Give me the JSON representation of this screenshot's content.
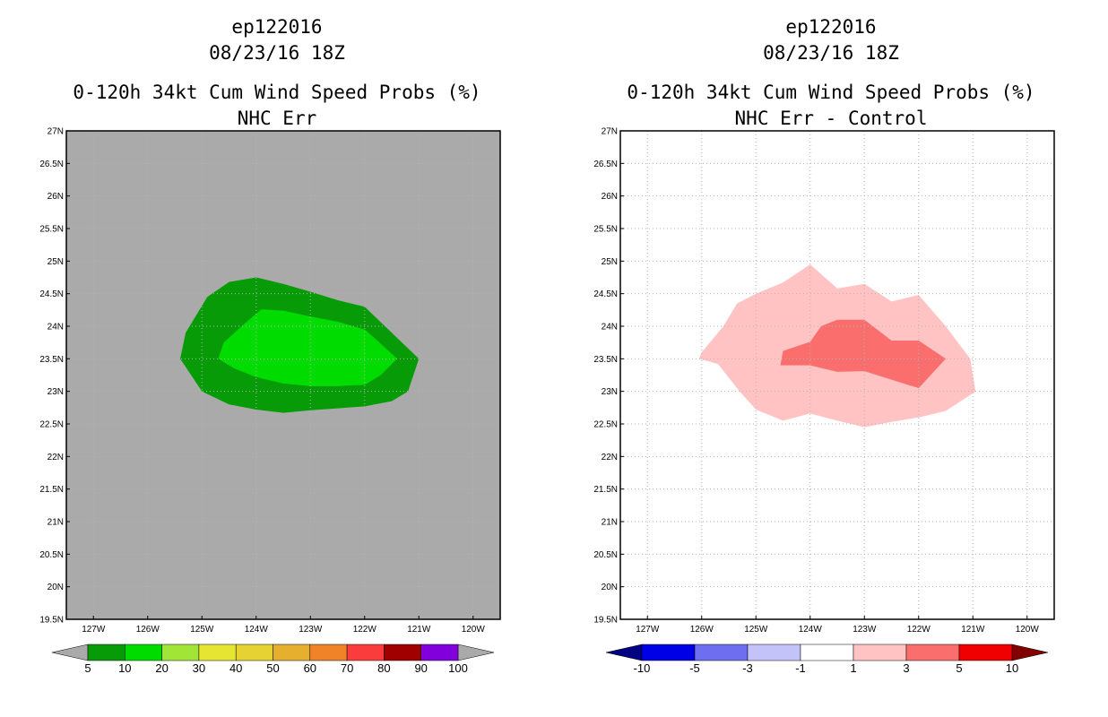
{
  "chart_data": [
    {
      "type": "heatmap",
      "storm_id": "ep122016",
      "date": "08/23/16 18Z",
      "title": "0-120h 34kt Cum Wind Speed Probs (%)",
      "subtitle": "NHC Err",
      "xlim": [
        -127.5,
        -119.5
      ],
      "ylim": [
        19.5,
        27
      ],
      "x_ticks": [
        "127W",
        "126W",
        "125W",
        "124W",
        "123W",
        "122W",
        "121W",
        "120W"
      ],
      "y_ticks": [
        "19.5N",
        "20N",
        "20.5N",
        "21N",
        "21.5N",
        "22N",
        "22.5N",
        "23N",
        "23.5N",
        "24N",
        "24.5N",
        "25N",
        "25.5N",
        "26N",
        "26.5N",
        "27N"
      ],
      "grid": true,
      "background_color": "#aaaaaa",
      "contours": [
        {
          "level": "5-10",
          "color": "#079b07",
          "points": [
            [
              -125.4,
              23.5
            ],
            [
              -125.3,
              23.9
            ],
            [
              -124.9,
              24.45
            ],
            [
              -124.5,
              24.68
            ],
            [
              -124.0,
              24.75
            ],
            [
              -123.5,
              24.65
            ],
            [
              -123.0,
              24.53
            ],
            [
              -122.5,
              24.4
            ],
            [
              -122.0,
              24.3
            ],
            [
              -121.5,
              23.9
            ],
            [
              -121.0,
              23.5
            ],
            [
              -121.2,
              23.0
            ],
            [
              -121.5,
              22.85
            ],
            [
              -122.0,
              22.77
            ],
            [
              -122.5,
              22.74
            ],
            [
              -123.0,
              22.71
            ],
            [
              -123.5,
              22.67
            ],
            [
              -124.0,
              22.72
            ],
            [
              -124.5,
              22.8
            ],
            [
              -125.0,
              23.0
            ]
          ]
        },
        {
          "level": "10-20",
          "color": "#00dc00",
          "points": [
            [
              -124.7,
              23.5
            ],
            [
              -124.6,
              23.75
            ],
            [
              -124.2,
              24.05
            ],
            [
              -123.9,
              24.26
            ],
            [
              -123.5,
              24.24
            ],
            [
              -123.0,
              24.15
            ],
            [
              -122.5,
              24.07
            ],
            [
              -122.0,
              23.95
            ],
            [
              -121.7,
              23.73
            ],
            [
              -121.4,
              23.5
            ],
            [
              -121.7,
              23.25
            ],
            [
              -122.0,
              23.1
            ],
            [
              -122.5,
              23.08
            ],
            [
              -123.0,
              23.08
            ],
            [
              -123.5,
              23.12
            ],
            [
              -124.0,
              23.22
            ],
            [
              -124.4,
              23.35
            ]
          ]
        }
      ],
      "colorbar": {
        "labels": [
          "5",
          "10",
          "20",
          "30",
          "40",
          "50",
          "60",
          "70",
          "80",
          "90",
          "100"
        ],
        "colors": [
          "#079b07",
          "#00dc00",
          "#a1e537",
          "#e6e632",
          "#e6d232",
          "#e6af2d",
          "#f08228",
          "#fa3c3c",
          "#a00000",
          "#8200dc"
        ],
        "under_color": "#aaaaaa",
        "over_color": "#aaaaaa"
      }
    },
    {
      "type": "heatmap",
      "storm_id": "ep122016",
      "date": "08/23/16 18Z",
      "title": "0-120h 34kt Cum Wind Speed Probs (%)",
      "subtitle": "NHC Err - Control",
      "xlim": [
        -127.5,
        -119.5
      ],
      "ylim": [
        19.5,
        27
      ],
      "x_ticks": [
        "127W",
        "126W",
        "125W",
        "124W",
        "123W",
        "122W",
        "121W",
        "120W"
      ],
      "y_ticks": [
        "19.5N",
        "20N",
        "20.5N",
        "21N",
        "21.5N",
        "22N",
        "22.5N",
        "23N",
        "23.5N",
        "24N",
        "24.5N",
        "25N",
        "25.5N",
        "26N",
        "26.5N",
        "27N"
      ],
      "grid": true,
      "background_color": "#ffffff",
      "contours": [
        {
          "level": "1-3",
          "color": "#ffc3c3",
          "points": [
            [
              -126.05,
              23.5
            ],
            [
              -126.0,
              23.6
            ],
            [
              -125.6,
              24.0
            ],
            [
              -125.35,
              24.35
            ],
            [
              -125.0,
              24.5
            ],
            [
              -124.5,
              24.67
            ],
            [
              -124.0,
              24.95
            ],
            [
              -123.5,
              24.58
            ],
            [
              -123.0,
              24.65
            ],
            [
              -122.5,
              24.38
            ],
            [
              -122.0,
              24.48
            ],
            [
              -121.5,
              24.0
            ],
            [
              -121.05,
              23.5
            ],
            [
              -120.95,
              23.0
            ],
            [
              -121.5,
              22.7
            ],
            [
              -122.0,
              22.6
            ],
            [
              -122.5,
              22.53
            ],
            [
              -123.0,
              22.45
            ],
            [
              -123.5,
              22.55
            ],
            [
              -124.0,
              22.66
            ],
            [
              -124.5,
              22.55
            ],
            [
              -125.0,
              22.72
            ],
            [
              -125.3,
              23.0
            ],
            [
              -125.7,
              23.42
            ]
          ]
        },
        {
          "level": "3-5",
          "color": "#fa6e6e",
          "points": [
            [
              -124.55,
              23.4
            ],
            [
              -124.5,
              23.62
            ],
            [
              -124.0,
              23.76
            ],
            [
              -123.8,
              24.0
            ],
            [
              -123.5,
              24.1
            ],
            [
              -123.0,
              24.1
            ],
            [
              -122.5,
              23.78
            ],
            [
              -122.0,
              23.78
            ],
            [
              -121.5,
              23.5
            ],
            [
              -122.0,
              23.05
            ],
            [
              -122.5,
              23.18
            ],
            [
              -123.0,
              23.31
            ],
            [
              -123.5,
              23.3
            ],
            [
              -124.0,
              23.4
            ]
          ]
        }
      ],
      "colorbar": {
        "labels": [
          "-10",
          "-5",
          "-3",
          "-1",
          "1",
          "3",
          "5",
          "10"
        ],
        "colors": [
          "#0000e6",
          "#6e6ef0",
          "#c3c3fa",
          "#ffffff",
          "#ffc3c3",
          "#fa6e6e",
          "#f00000"
        ],
        "under_color": "#000082",
        "over_color": "#820000"
      }
    }
  ]
}
